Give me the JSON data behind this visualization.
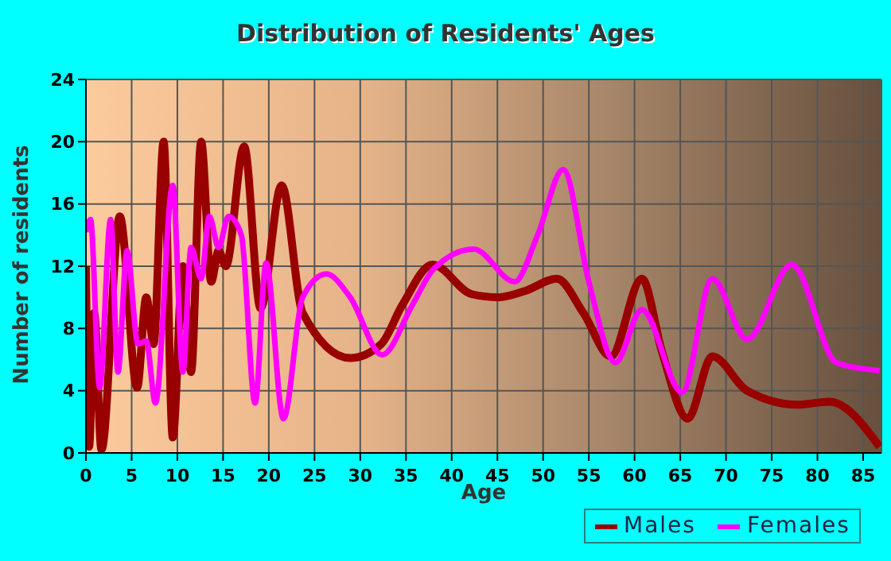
{
  "chart_data": {
    "type": "line",
    "title": "Distribution of Residents' Ages",
    "xlabel": "Age",
    "ylabel": "Number of residents",
    "xlim": [
      0,
      87
    ],
    "xticks": [
      0,
      5,
      10,
      15,
      20,
      25,
      30,
      35,
      40,
      45,
      50,
      55,
      60,
      65,
      70,
      75,
      80,
      85
    ],
    "ylim": [
      0,
      24
    ],
    "yticks": [
      0,
      4,
      8,
      12,
      16,
      20,
      24
    ],
    "grid": true,
    "legend": "bottom right",
    "marker": "none",
    "line_style": "solid",
    "series": [
      {
        "name": "Males",
        "color": "#990000",
        "x": [
          0,
          0.35,
          0.9,
          1.7,
          3.7,
          5.6,
          6.6,
          7.4,
          8.5,
          9.5,
          10.6,
          11.5,
          12.6,
          13.7,
          14.5,
          15.3,
          17.3,
          19.1,
          21.4,
          23.7,
          28.9,
          32.3,
          34.6,
          37.9,
          42.2,
          45.1,
          48,
          51.5,
          54.4,
          57.4,
          60.8,
          63,
          65.8,
          68.5,
          72.3,
          77.8,
          81.3,
          86.8
        ],
        "values": [
          12,
          0.4,
          9,
          0.2,
          15.2,
          4.2,
          10,
          7,
          20,
          1,
          12,
          5.2,
          20,
          11,
          13,
          12,
          19.7,
          9.3,
          17.2,
          9,
          6.1,
          7,
          9.5,
          12.1,
          10.2,
          10,
          10.4,
          11.2,
          9,
          6.2,
          11.2,
          6.5,
          2.2,
          6.2,
          4,
          3.1,
          3.3,
          0.4
        ]
      },
      {
        "name": "Females",
        "color": "#ff00ff",
        "x": [
          0,
          0.5,
          1.5,
          2.7,
          3.5,
          4.5,
          5.7,
          6.6,
          7.6,
          9.5,
          10.6,
          11.5,
          12.6,
          13.5,
          14.5,
          15.6,
          17,
          18.5,
          19.7,
          21.6,
          23.7,
          26.3,
          28.9,
          32.4,
          35.7,
          38,
          42.4,
          46.9,
          49.4,
          52.2,
          55,
          57.9,
          60.8,
          65.2,
          68.5,
          72.3,
          77.2,
          82.1,
          86.8
        ],
        "values": [
          14.2,
          15,
          4.2,
          15,
          5.2,
          13,
          7,
          7.2,
          3.2,
          17.2,
          5.2,
          13.2,
          11.2,
          15.2,
          13.2,
          15.2,
          14,
          3.2,
          12.2,
          2.2,
          10,
          11.5,
          10,
          6.3,
          9.5,
          11.8,
          13.1,
          11,
          14,
          18.2,
          11,
          5.8,
          9.2,
          3.9,
          11.2,
          7.3,
          12.1,
          5.8,
          5.3
        ]
      }
    ]
  }
}
